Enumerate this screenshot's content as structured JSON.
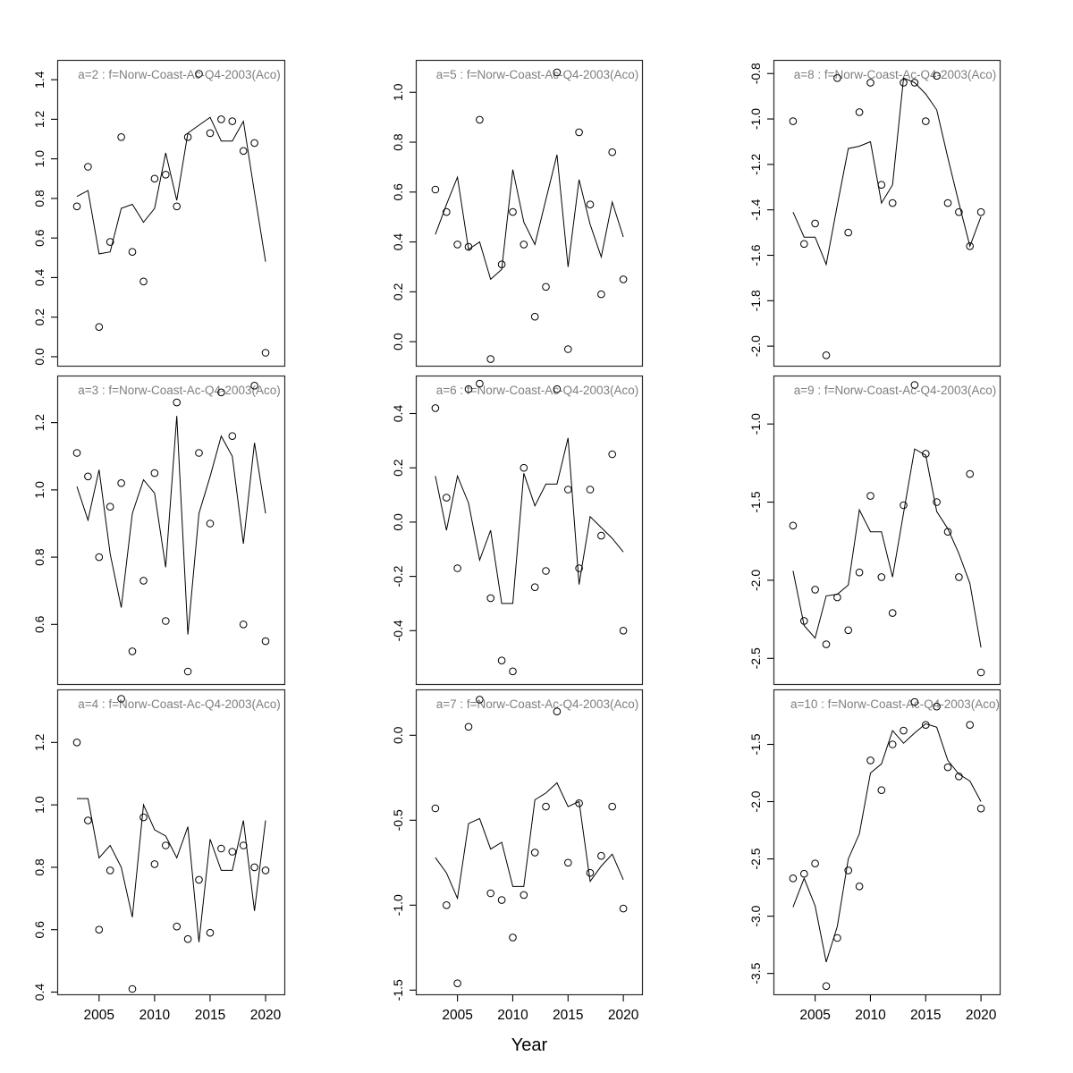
{
  "figure": {
    "background": "#ffffff",
    "frame_color": "#2b2b2b",
    "title_color": "#7f7f7f",
    "line_color": "#000000",
    "point_color": "#000000",
    "tick_color": "#000000"
  },
  "chart_data": {
    "type": "scatter+line",
    "layout": "3x3-panel-grid",
    "grid": false,
    "legend": "none",
    "point_style": "open-circle",
    "xlabel": "Year",
    "x": [
      2003,
      2004,
      2005,
      2006,
      2007,
      2008,
      2009,
      2010,
      2011,
      2012,
      2013,
      2014,
      2015,
      2016,
      2017,
      2018,
      2019,
      2020
    ],
    "xticks": [
      2005,
      2010,
      2015,
      2020
    ],
    "xtick_labels": [
      "2005",
      "2010",
      "2015",
      "2020"
    ],
    "xlim": [
      2001.23,
      2021.77
    ],
    "panels": [
      {
        "id": "a2",
        "row": 0,
        "col": 0,
        "title": "a=2 : f=Norw-Coast-Ac-Q4-2003(Aco)",
        "ylim": [
          -0.05,
          1.5
        ],
        "yticks": [
          0.0,
          0.2,
          0.4,
          0.6,
          0.8,
          1.0,
          1.2,
          1.4
        ],
        "ytick_labels": [
          "0.0",
          "0.2",
          "0.4",
          "0.6",
          "0.8",
          "1.0",
          "1.2",
          "1.4"
        ],
        "observed": [
          0.76,
          0.96,
          0.15,
          0.58,
          1.11,
          0.53,
          0.38,
          0.9,
          0.92,
          0.76,
          1.11,
          1.43,
          1.13,
          1.2,
          1.19,
          1.04,
          1.08,
          0.02
        ],
        "fitted": [
          0.81,
          0.84,
          0.52,
          0.53,
          0.75,
          0.77,
          0.68,
          0.75,
          1.03,
          0.79,
          1.13,
          1.17,
          1.21,
          1.09,
          1.09,
          1.19,
          0.83,
          0.48
        ]
      },
      {
        "id": "a5",
        "row": 0,
        "col": 1,
        "title": "a=5 : f=Norw-Coast-Ac-Q4-2003(Aco)",
        "ylim": [
          -0.1,
          1.13
        ],
        "yticks": [
          0.0,
          0.2,
          0.4,
          0.6,
          0.8,
          1.0
        ],
        "ytick_labels": [
          "0.0",
          "0.2",
          "0.4",
          "0.6",
          "0.8",
          "1.0"
        ],
        "observed": [
          0.61,
          0.52,
          0.39,
          0.38,
          0.89,
          -0.07,
          0.31,
          0.52,
          0.39,
          0.1,
          0.22,
          1.08,
          -0.03,
          0.84,
          0.55,
          0.19,
          0.76,
          0.25
        ],
        "fitted": [
          0.43,
          0.55,
          0.66,
          0.37,
          0.4,
          0.25,
          0.29,
          0.69,
          0.48,
          0.39,
          0.57,
          0.75,
          0.3,
          0.65,
          0.47,
          0.34,
          0.56,
          0.42
        ]
      },
      {
        "id": "a8",
        "row": 0,
        "col": 2,
        "title": "a=8 : f=Norw-Coast-Ac-Q4-2003(Aco)",
        "ylim": [
          -2.09,
          -0.74
        ],
        "yticks": [
          -2.0,
          -1.8,
          -1.6,
          -1.4,
          -1.2,
          -1.0,
          -0.8
        ],
        "ytick_labels": [
          "-2.0",
          "-1.8",
          "-1.6",
          "-1.4",
          "-1.2",
          "-1.0",
          "-0.8"
        ],
        "observed": [
          -1.01,
          -1.55,
          -1.46,
          -2.04,
          -0.82,
          -1.5,
          -0.97,
          -0.84,
          -1.29,
          -1.37,
          -0.84,
          -0.84,
          -1.01,
          -0.81,
          -1.37,
          -1.41,
          -1.56,
          -1.41
        ],
        "fitted": [
          -1.41,
          -1.52,
          -1.52,
          -1.64,
          -1.38,
          -1.13,
          -1.12,
          -1.1,
          -1.37,
          -1.29,
          -0.82,
          -0.84,
          -0.89,
          -0.96,
          -1.17,
          -1.37,
          -1.56,
          -1.43
        ]
      },
      {
        "id": "a3",
        "row": 1,
        "col": 0,
        "title": "a=3 : f=Norw-Coast-Ac-Q4-2003(Aco)",
        "ylim": [
          0.42,
          1.34
        ],
        "yticks": [
          0.6,
          0.8,
          1.0,
          1.2
        ],
        "ytick_labels": [
          "0.6",
          "0.8",
          "1.0",
          "1.2"
        ],
        "observed": [
          1.11,
          1.04,
          0.8,
          0.95,
          1.02,
          0.52,
          0.73,
          1.05,
          0.61,
          1.26,
          0.46,
          1.11,
          0.9,
          1.29,
          1.16,
          0.6,
          1.31,
          0.55
        ],
        "fitted": [
          1.01,
          0.91,
          1.06,
          0.81,
          0.65,
          0.93,
          1.03,
          0.99,
          0.77,
          1.22,
          0.57,
          0.93,
          1.04,
          1.16,
          1.1,
          0.84,
          1.14,
          0.93
        ]
      },
      {
        "id": "a6",
        "row": 1,
        "col": 1,
        "title": "a=6 : f=Norw-Coast-Ac-Q4-2003(Aco)",
        "ylim": [
          -0.6,
          0.54
        ],
        "yticks": [
          -0.4,
          -0.2,
          0.0,
          0.2,
          0.4
        ],
        "ytick_labels": [
          "-0.4",
          "-0.2",
          "0.0",
          "0.2",
          "0.4"
        ],
        "observed": [
          0.42,
          0.09,
          -0.17,
          0.49,
          0.51,
          -0.28,
          -0.51,
          -0.55,
          0.2,
          -0.24,
          -0.18,
          0.49,
          0.12,
          -0.17,
          0.12,
          -0.05,
          0.25,
          -0.4
        ],
        "fitted": [
          0.17,
          -0.03,
          0.17,
          0.07,
          -0.14,
          -0.03,
          -0.3,
          -0.3,
          0.18,
          0.06,
          0.14,
          0.14,
          0.31,
          -0.23,
          0.02,
          -0.02,
          -0.06,
          -0.11
        ]
      },
      {
        "id": "a9",
        "row": 1,
        "col": 2,
        "title": "a=9 : f=Norw-Coast-Ac-Q4-2003(Aco)",
        "ylim": [
          -2.67,
          -0.69
        ],
        "yticks": [
          -2.5,
          -2.0,
          -1.5,
          -1.0
        ],
        "ytick_labels": [
          "-2.5",
          "-2.0",
          "-1.5",
          "-1.0"
        ],
        "observed": [
          -1.65,
          -2.26,
          -2.06,
          -2.41,
          -2.11,
          -2.32,
          -1.95,
          -1.46,
          -1.98,
          -2.21,
          -1.52,
          -0.75,
          -1.19,
          -1.5,
          -1.69,
          -1.98,
          -1.32,
          -2.59
        ],
        "fitted": [
          -1.94,
          -2.29,
          -2.37,
          -2.1,
          -2.09,
          -2.03,
          -1.55,
          -1.69,
          -1.69,
          -1.98,
          -1.57,
          -1.16,
          -1.2,
          -1.56,
          -1.67,
          -1.83,
          -2.02,
          -2.43
        ]
      },
      {
        "id": "a4",
        "row": 2,
        "col": 0,
        "title": "a=4 : f=Norw-Coast-Ac-Q4-2003(Aco)",
        "ylim": [
          0.39,
          1.37
        ],
        "yticks": [
          0.4,
          0.6,
          0.8,
          1.0,
          1.2
        ],
        "ytick_labels": [
          "0.4",
          "0.6",
          "0.8",
          "1.0",
          "1.2"
        ],
        "observed": [
          1.2,
          0.95,
          0.6,
          0.79,
          1.34,
          0.41,
          0.96,
          0.81,
          0.87,
          0.61,
          0.57,
          0.76,
          0.59,
          0.86,
          0.85,
          0.87,
          0.8,
          0.79
        ],
        "fitted": [
          1.02,
          1.02,
          0.83,
          0.87,
          0.8,
          0.64,
          1.0,
          0.92,
          0.9,
          0.83,
          0.93,
          0.56,
          0.89,
          0.79,
          0.79,
          0.95,
          0.66,
          0.95
        ]
      },
      {
        "id": "a7",
        "row": 2,
        "col": 1,
        "title": "a=7 : f=Norw-Coast-Ac-Q4-2003(Aco)",
        "ylim": [
          -1.53,
          0.27
        ],
        "yticks": [
          -1.5,
          -1.0,
          -0.5,
          0.0
        ],
        "ytick_labels": [
          "-1.5",
          "-1.0",
          "-0.5",
          "0.0"
        ],
        "observed": [
          -0.43,
          -1.0,
          -1.46,
          0.05,
          0.21,
          -0.93,
          -0.97,
          -1.19,
          -0.94,
          -0.69,
          -0.42,
          0.14,
          -0.75,
          -0.4,
          -0.81,
          -0.71,
          -0.42,
          -1.02
        ],
        "fitted": [
          -0.72,
          -0.81,
          -0.96,
          -0.52,
          -0.49,
          -0.67,
          -0.63,
          -0.89,
          -0.89,
          -0.38,
          -0.34,
          -0.28,
          -0.42,
          -0.39,
          -0.86,
          -0.77,
          -0.7,
          -0.85
        ]
      },
      {
        "id": "a10",
        "row": 2,
        "col": 2,
        "title": "a=10 : f=Norw-Coast-Ac-Q4-2003(Aco)",
        "ylim": [
          -3.69,
          -1.02
        ],
        "yticks": [
          -3.5,
          -3.0,
          -2.5,
          -2.0,
          -1.5
        ],
        "ytick_labels": [
          "-3.5",
          "-3.0",
          "-2.5",
          "-2.0",
          "-1.5"
        ],
        "observed": [
          -2.67,
          -2.63,
          -2.54,
          -3.61,
          -3.19,
          -2.6,
          -2.74,
          -1.64,
          -1.9,
          -1.5,
          -1.38,
          -1.13,
          -1.33,
          -1.17,
          -1.7,
          -1.78,
          -1.33,
          -2.06
        ],
        "fitted": [
          -2.92,
          -2.67,
          -2.91,
          -3.4,
          -3.09,
          -2.5,
          -2.28,
          -1.75,
          -1.67,
          -1.38,
          -1.49,
          -1.4,
          -1.32,
          -1.35,
          -1.64,
          -1.76,
          -1.82,
          -2.0
        ]
      }
    ]
  }
}
